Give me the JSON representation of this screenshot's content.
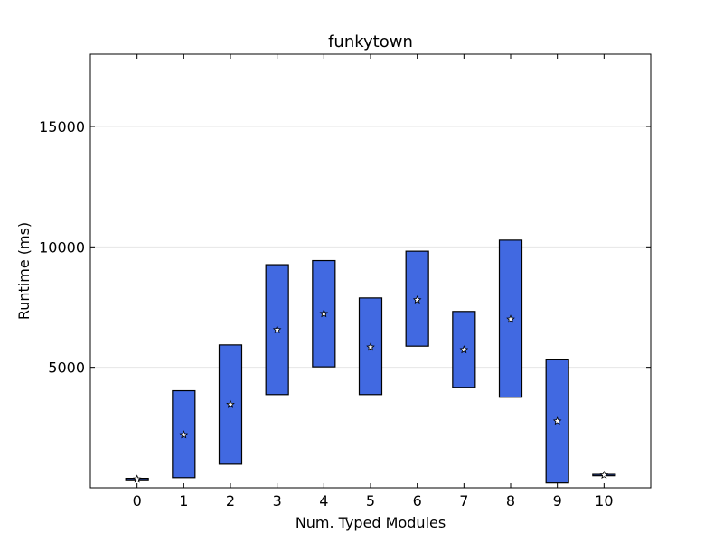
{
  "chart_data": {
    "type": "box",
    "title": "funkytown",
    "xlabel": "Num. Typed Modules",
    "ylabel": "Runtime (ms)",
    "xlim": [
      -1,
      11
    ],
    "ylim": [
      0,
      18000
    ],
    "x_ticks": [
      0,
      1,
      2,
      3,
      4,
      5,
      6,
      7,
      8,
      9,
      10
    ],
    "y_ticks": [
      5000,
      10000,
      15000
    ],
    "grid": "horizontal",
    "box_color": "#4169e1",
    "series": [
      {
        "x": 0,
        "low": 330,
        "high": 390,
        "mean": 360
      },
      {
        "x": 1,
        "low": 420,
        "high": 4030,
        "mean": 2200
      },
      {
        "x": 2,
        "low": 980,
        "high": 5930,
        "mean": 3460
      },
      {
        "x": 3,
        "low": 3870,
        "high": 9260,
        "mean": 6560
      },
      {
        "x": 4,
        "low": 5020,
        "high": 9430,
        "mean": 7230
      },
      {
        "x": 5,
        "low": 3870,
        "high": 7880,
        "mean": 5840
      },
      {
        "x": 6,
        "low": 5880,
        "high": 9820,
        "mean": 7800
      },
      {
        "x": 7,
        "low": 4170,
        "high": 7320,
        "mean": 5730
      },
      {
        "x": 8,
        "low": 3760,
        "high": 10280,
        "mean": 7000
      },
      {
        "x": 9,
        "low": 200,
        "high": 5340,
        "mean": 2770
      },
      {
        "x": 10,
        "low": 500,
        "high": 560,
        "mean": 530
      }
    ]
  }
}
